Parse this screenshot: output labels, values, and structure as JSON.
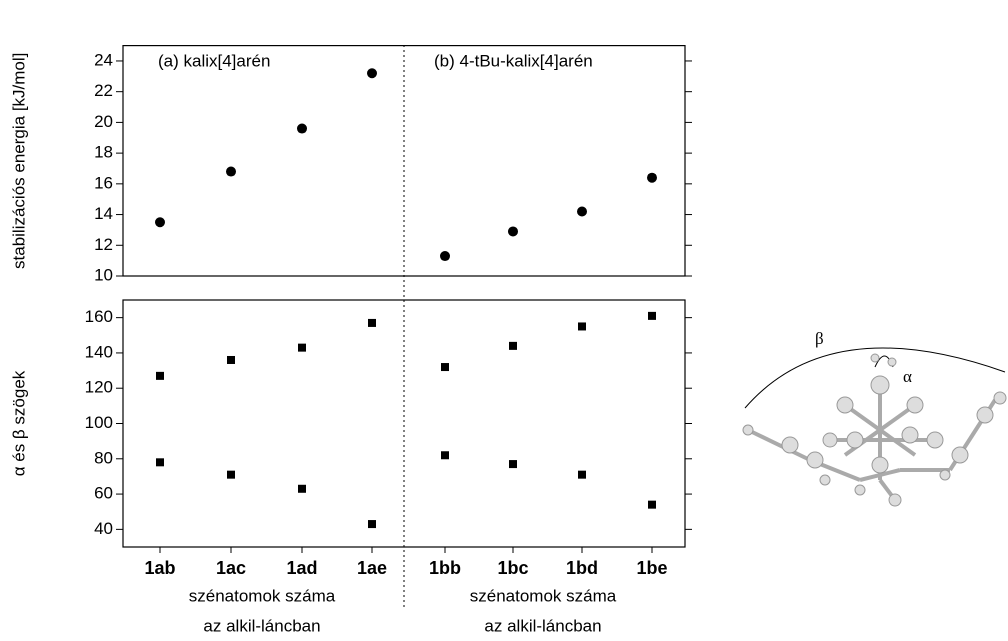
{
  "chart_data": [
    {
      "type": "scatter",
      "marker": "circle",
      "ylabel": "stabilizációs energia [kJ/mol]",
      "panel_titles": [
        "(a) kalix[4]arén",
        "(b) 4-tBu-kalix[4]arén"
      ],
      "categories": [
        null,
        null,
        null,
        null,
        null,
        null,
        null,
        null
      ],
      "series": [
        {
          "color": "#000000",
          "values": [
            13.5,
            16.8,
            19.6,
            23.2,
            11.3,
            12.9,
            14.2,
            16.4
          ]
        }
      ],
      "ylim": [
        10,
        25
      ],
      "yticks": [
        10,
        12,
        14,
        16,
        18,
        20,
        22,
        24
      ]
    },
    {
      "type": "scatter",
      "marker": "square",
      "ylabel": "α és β szögek",
      "categories": [
        "1ab",
        "1ac",
        "1ad",
        "1ae",
        "1bb",
        "1bc",
        "1bd",
        "1be"
      ],
      "series": [
        {
          "color": "#000000",
          "values": [
            127,
            136,
            143,
            157,
            132,
            144,
            155,
            161
          ]
        },
        {
          "color": "#000000",
          "values": [
            78,
            71,
            63,
            43,
            82,
            77,
            71,
            54
          ]
        }
      ],
      "ylim": [
        30,
        170
      ],
      "yticks": [
        40,
        60,
        80,
        100,
        120,
        140,
        160
      ],
      "xlabels": [
        [
          "szénatomok száma",
          "az alkil-láncban"
        ],
        [
          "szénatomok száma",
          "az alkil-láncban"
        ]
      ]
    }
  ],
  "figure_labels": [
    "β",
    "α"
  ]
}
